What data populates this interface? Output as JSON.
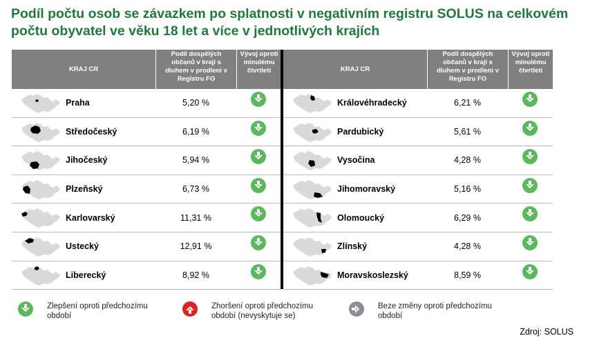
{
  "title": "Podíl počtu osob se závazkem po splatnosti v negativním registru SOLUS na celkovém počtu obyvatel ve věku 18 let a více v jednotlivých krajích",
  "headers": {
    "kraj": "KRAJ CR",
    "podil": "Podíl dospělých občanů v kraji s dluhem v prodlení v Registru FO",
    "vyvoj": "Vývoj oproti minulému čtvrtletí"
  },
  "chart_data": {
    "type": "table",
    "columns": [
      "KRAJ CR",
      "Podíl dospělých občanů v kraji s dluhem v prodlení v Registru FO",
      "Vývoj oproti minulému čtvrtletí"
    ],
    "left": [
      {
        "region": "Praha",
        "value": "5,20 %",
        "trend": "improvement"
      },
      {
        "region": "Středočeský",
        "value": "6,19 %",
        "trend": "improvement"
      },
      {
        "region": "Jihočeský",
        "value": "5,94 %",
        "trend": "improvement"
      },
      {
        "region": "Plzeňský",
        "value": "6,73 %",
        "trend": "improvement"
      },
      {
        "region": "Karlovarský",
        "value": "11,31 %",
        "trend": "improvement"
      },
      {
        "region": "Ustecký",
        "value": "12,91 %",
        "trend": "improvement"
      },
      {
        "region": "Liberecký",
        "value": "8,92 %",
        "trend": "improvement"
      }
    ],
    "right": [
      {
        "region": "Královéhradecký",
        "value": "6,21 %",
        "trend": "improvement"
      },
      {
        "region": "Pardubický",
        "value": "5,61 %",
        "trend": "improvement"
      },
      {
        "region": "Vysočina",
        "value": "4,28 %",
        "trend": "improvement"
      },
      {
        "region": "Jihomoravský",
        "value": "5,16 %",
        "trend": "improvement"
      },
      {
        "region": "Olomoucký",
        "value": "6,29 %",
        "trend": "improvement"
      },
      {
        "region": "Zlínský",
        "value": "4,28 %",
        "trend": "improvement"
      },
      {
        "region": "Moravskoslezský",
        "value": "8,59 %",
        "trend": "improvement"
      }
    ]
  },
  "legend": {
    "improvement": "Zlepšení oproti předchozímu období",
    "worsening": "Zhoršení oproti předchozímu období (nevyskytuje se)",
    "nochange": "Beze změny oproti předchozímu období"
  },
  "colors": {
    "title": "#1d7a3c",
    "header_bg": "#808080",
    "improvement": "#5cb85c",
    "worsening": "#e02020",
    "nochange": "#8a8f94",
    "map_fill": "#d9d9d9",
    "region_fill": "#000000"
  },
  "icons": {
    "improvement": "green-down-arrow-icon",
    "worsening": "red-up-arrow-icon",
    "nochange": "grey-right-arrow-icon"
  },
  "source": "Zdroj: SOLUS"
}
